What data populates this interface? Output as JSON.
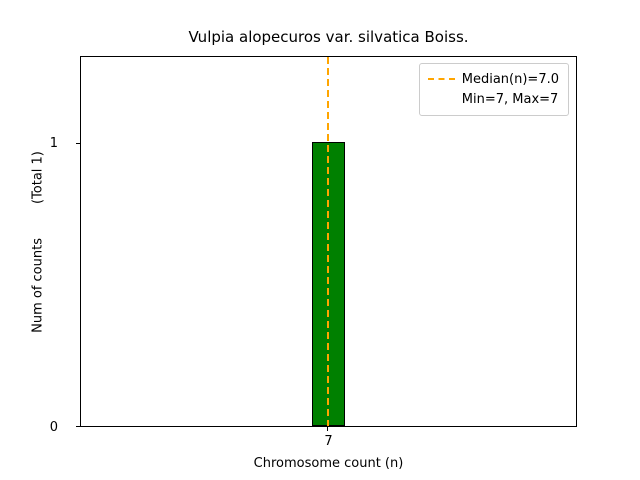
{
  "title": "Vulpia alopecuros var. silvatica Boiss.",
  "chart_data": {
    "type": "bar",
    "categories": [
      7
    ],
    "values": [
      1
    ],
    "title": "Vulpia alopecuros var. silvatica Boiss.",
    "xlabel": "Chromosome count (n)",
    "ylabel": "Num of counts",
    "ylabel_secondary": "(Total 1)",
    "ylim": [
      0,
      1.3
    ],
    "xticks": [
      "7"
    ],
    "yticks": [
      "0",
      "1"
    ],
    "grid": false,
    "bar_color": "#008000",
    "bar_edge_color": "#000000",
    "annotations": [
      {
        "type": "vline",
        "x": 7,
        "style": "dashed",
        "color": "#FFA500",
        "label": "Median(n)=7.0"
      }
    ],
    "legend": {
      "position": "upper right",
      "entries": [
        "Median(n)=7.0",
        "Min=7, Max=7"
      ]
    }
  },
  "axes": {
    "ytick_label_1": "1",
    "ytick_label_0": "0",
    "xtick_label": "7"
  },
  "legend": {
    "median_label": "Median(n)=7.0",
    "minmax_label": "Min=7, Max=7"
  },
  "labels": {
    "xlabel": "Chromosome count (n)",
    "ylabel": "Num of counts",
    "total": "(Total 1)"
  }
}
